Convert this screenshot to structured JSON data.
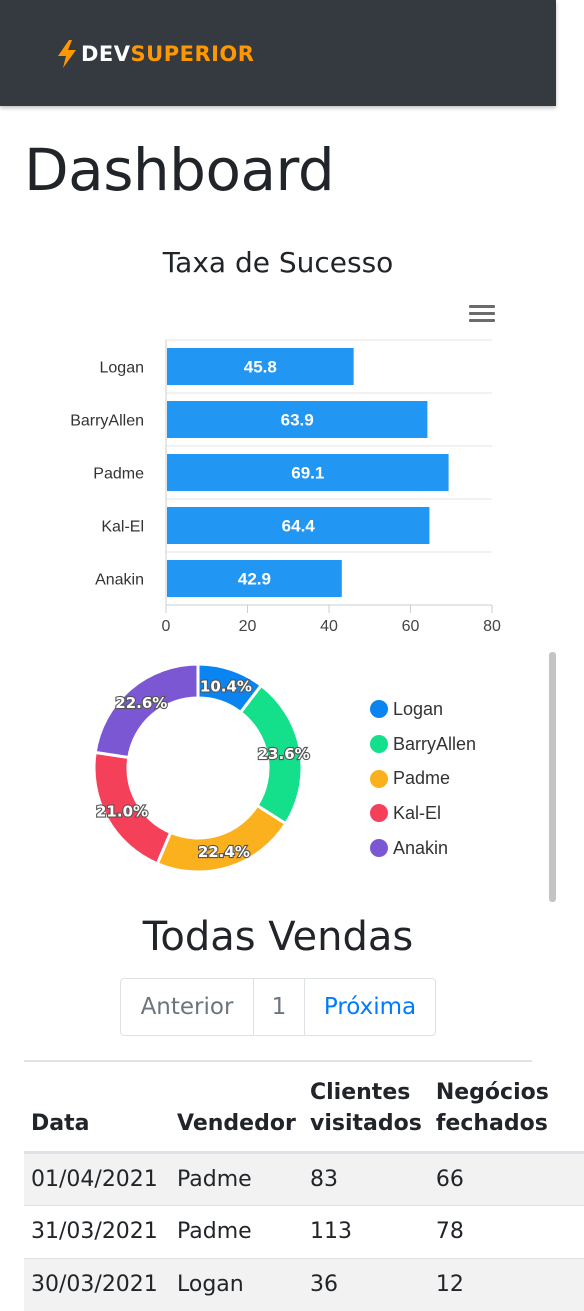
{
  "header": {
    "brand_part1": "DEV",
    "brand_part2": "SUPERIOR",
    "brand_color": "#ff9800",
    "icon": "lightning-bolt-icon"
  },
  "page_title": "Dashboard",
  "success_chart": {
    "title": "Taxa de Sucesso",
    "menu_icon": "hamburger-menu-icon"
  },
  "chart_data": [
    {
      "type": "bar",
      "orientation": "horizontal",
      "categories": [
        "Logan",
        "BarryAllen",
        "Padme",
        "Kal-El",
        "Anakin"
      ],
      "values": [
        45.8,
        63.9,
        69.1,
        64.4,
        42.9
      ],
      "x_ticks": [
        "0",
        "20",
        "40",
        "60",
        "80"
      ],
      "xlim": [
        0,
        80
      ],
      "color": "#2196f3",
      "grid": true,
      "data_labels": true
    },
    {
      "type": "pie",
      "variant": "donut",
      "labels": [
        "Logan",
        "BarryAllen",
        "Padme",
        "Kal-El",
        "Anakin"
      ],
      "values": [
        10.4,
        23.6,
        22.4,
        21.0,
        22.6
      ],
      "value_labels": [
        "10.4%",
        "23.6%",
        "22.4%",
        "21.0%",
        "22.6%"
      ],
      "colors": [
        "#0a84f0",
        "#14e08c",
        "#fbb01e",
        "#f5405a",
        "#7b57d4"
      ],
      "legend_placement": "right"
    }
  ],
  "sales": {
    "title": "Todas Vendas",
    "pagination": {
      "prev": "Anterior",
      "current": "1",
      "next": "Próxima"
    },
    "columns": [
      "Data",
      "Vendedor",
      "Clientes visitados",
      "Negócios fechados"
    ],
    "rows": [
      [
        "01/04/2021",
        "Padme",
        "83",
        "66"
      ],
      [
        "31/03/2021",
        "Padme",
        "113",
        "78"
      ],
      [
        "30/03/2021",
        "Logan",
        "36",
        "12"
      ]
    ]
  }
}
